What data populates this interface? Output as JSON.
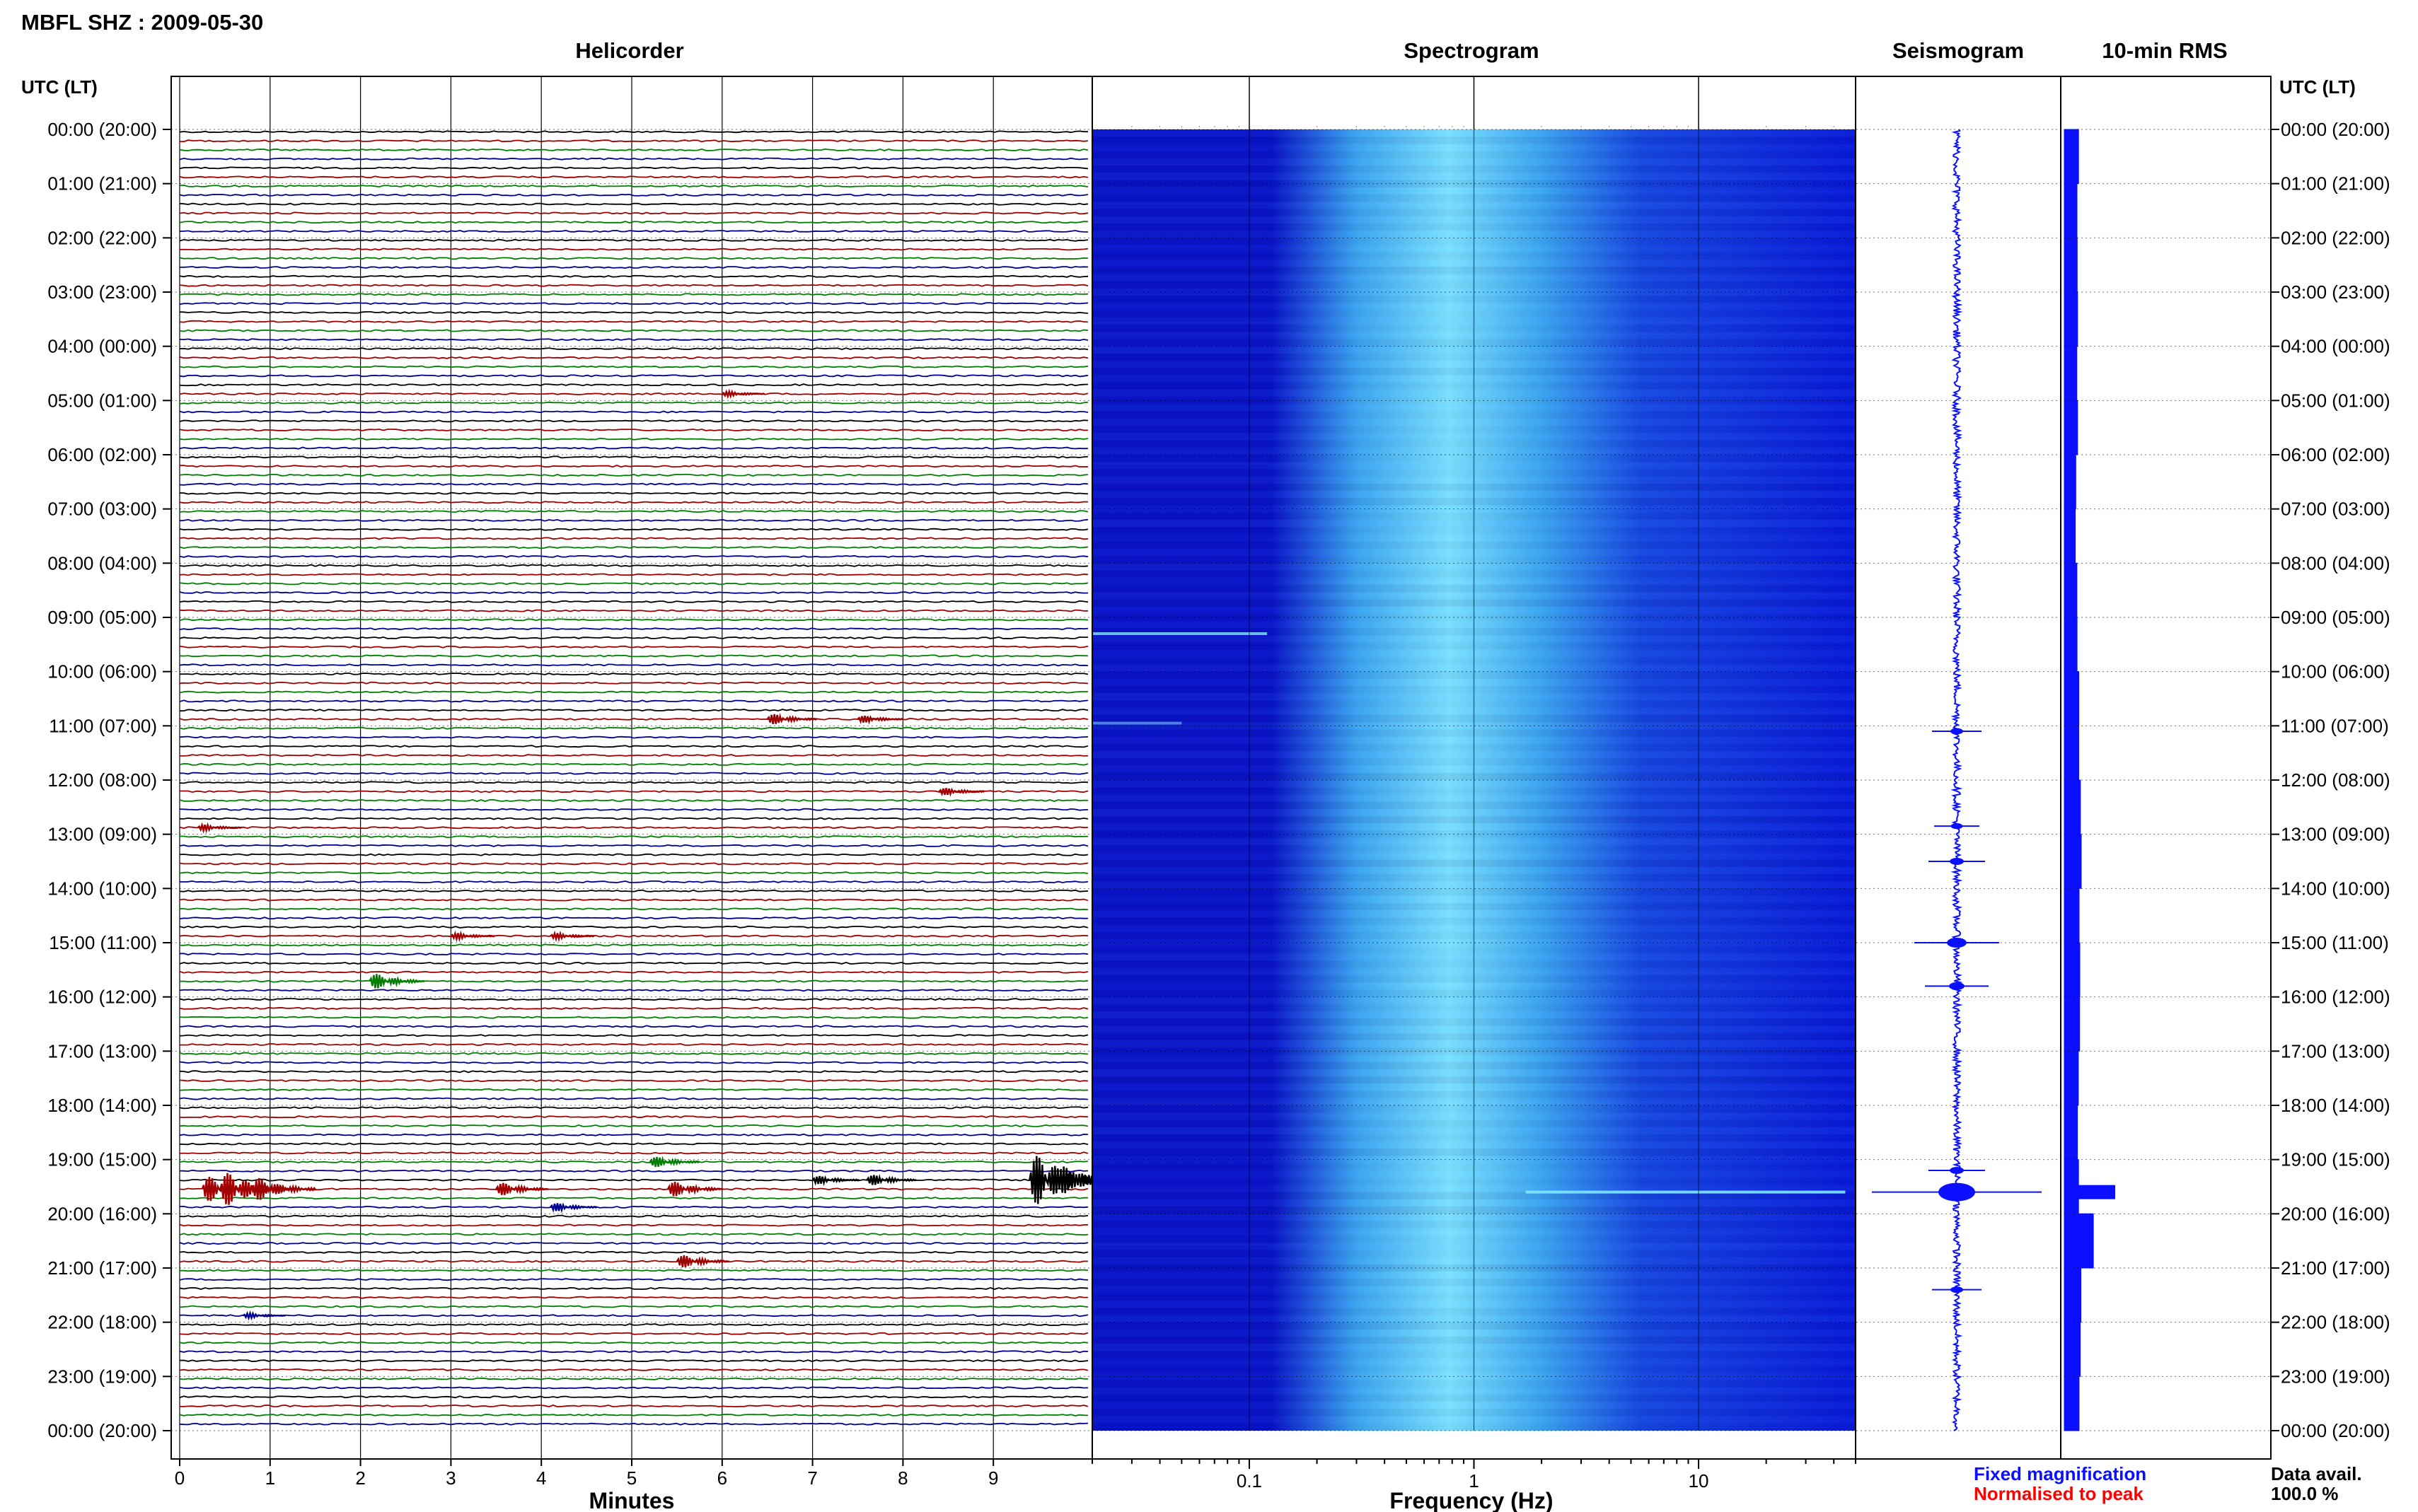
{
  "header": {
    "title": "MBFL SHZ : 2009-05-30"
  },
  "panels": {
    "helicorder": "Helicorder",
    "spectrogram": "Spectrogram",
    "seismogram": "Seismogram",
    "rms": "10-min RMS"
  },
  "axis": {
    "left_label": "UTC (LT)",
    "right_label": "UTC (LT)",
    "x_minutes_label": "Minutes",
    "x_frequency_label": "Frequency (Hz)"
  },
  "legend": {
    "fixed": "Fixed magnification",
    "normalised": "Normalised to peak",
    "fixed_color": "#0a10ff",
    "normalised_color": "#ff0000"
  },
  "availability": {
    "label": "Data avail.",
    "value": "100.0 %"
  },
  "colors": {
    "trace_black": "#000000",
    "trace_red": "#a00000",
    "trace_green": "#008000",
    "trace_blue": "#000090",
    "spectro_low": "#0a14c8",
    "spectro_high": "#7fe6ff",
    "rms_fill": "#0a10ff"
  },
  "chart_data": {
    "type": "heatmap",
    "time_ticks": [
      "00:00 (20:00)",
      "01:00 (21:00)",
      "02:00 (22:00)",
      "03:00 (23:00)",
      "04:00 (00:00)",
      "05:00 (01:00)",
      "06:00 (02:00)",
      "07:00 (03:00)",
      "08:00 (04:00)",
      "09:00 (05:00)",
      "10:00 (06:00)",
      "11:00 (07:00)",
      "12:00 (08:00)",
      "13:00 (09:00)",
      "14:00 (10:00)",
      "15:00 (11:00)",
      "16:00 (12:00)",
      "17:00 (13:00)",
      "18:00 (14:00)",
      "19:00 (15:00)",
      "20:00 (16:00)",
      "21:00 (17:00)",
      "22:00 (18:00)",
      "23:00 (19:00)",
      "00:00 (20:00)"
    ],
    "helicorder": {
      "minutes_ticks": [
        "0",
        "1",
        "2",
        "3",
        "4",
        "5",
        "6",
        "7",
        "8",
        "9"
      ],
      "xlim": [
        0,
        10
      ],
      "lines_per_hour": 6,
      "color_cycle": [
        "black",
        "red",
        "green",
        "blue"
      ],
      "events": [
        {
          "hour": 4.95,
          "minute": 6.0,
          "amp": 0.25
        },
        {
          "hour": 10.95,
          "minute": 6.5,
          "amp": 0.5
        },
        {
          "hour": 10.95,
          "minute": 7.5,
          "amp": 0.35
        },
        {
          "hour": 12.3,
          "minute": 8.4,
          "amp": 0.35
        },
        {
          "hour": 12.95,
          "minute": 0.2,
          "amp": 0.3
        },
        {
          "hour": 14.95,
          "minute": 3.0,
          "amp": 0.3
        },
        {
          "hour": 14.95,
          "minute": 4.1,
          "amp": 0.3
        },
        {
          "hour": 15.8,
          "minute": 2.1,
          "amp": 0.7
        },
        {
          "hour": 19.1,
          "minute": 5.2,
          "amp": 0.5
        },
        {
          "hour": 19.45,
          "minute": 9.4,
          "amp": 2.0
        },
        {
          "hour": 19.45,
          "minute": 9.7,
          "amp": 1.2
        },
        {
          "hour": 19.45,
          "minute": 7.0,
          "amp": 0.4
        },
        {
          "hour": 19.45,
          "minute": 7.6,
          "amp": 0.5
        },
        {
          "hour": 19.62,
          "minute": 0.25,
          "amp": 1.1
        },
        {
          "hour": 19.62,
          "minute": 0.45,
          "amp": 1.4
        },
        {
          "hour": 19.62,
          "minute": 0.8,
          "amp": 1.0
        },
        {
          "hour": 19.62,
          "minute": 3.5,
          "amp": 0.6
        },
        {
          "hour": 19.62,
          "minute": 5.4,
          "amp": 0.7
        },
        {
          "hour": 19.95,
          "minute": 4.1,
          "amp": 0.4
        },
        {
          "hour": 20.95,
          "minute": 5.5,
          "amp": 0.6
        },
        {
          "hour": 21.95,
          "minute": 0.7,
          "amp": 0.25
        }
      ]
    },
    "spectrogram": {
      "x_scale": "log",
      "xlim": [
        0.02,
        50
      ],
      "x_ticks": [
        "0.1",
        "1",
        "10"
      ],
      "peak_band_hz": [
        0.3,
        2.0
      ],
      "lines": [
        {
          "hour": 9.3,
          "f_from": 0.02,
          "f_to": 0.12,
          "strength": 0.8
        },
        {
          "hour": 10.95,
          "f_from": 0.02,
          "f_to": 0.05,
          "strength": 0.5
        },
        {
          "hour": 19.6,
          "f_from": 1.7,
          "f_to": 45,
          "strength": 0.9
        }
      ]
    },
    "seismogram": {
      "events": [
        {
          "hour": 11.1,
          "amp": 0.15
        },
        {
          "hour": 12.85,
          "amp": 0.12
        },
        {
          "hour": 13.5,
          "amp": 0.2
        },
        {
          "hour": 15.0,
          "amp": 0.4
        },
        {
          "hour": 15.8,
          "amp": 0.25
        },
        {
          "hour": 19.2,
          "amp": 0.2
        },
        {
          "hour": 19.6,
          "amp": 1.0
        },
        {
          "hour": 21.4,
          "amp": 0.15
        }
      ]
    },
    "rms": {
      "hourly_values": [
        0.5,
        0.45,
        0.4,
        0.4,
        0.38,
        0.42,
        0.38,
        0.36,
        0.38,
        0.5,
        0.55,
        0.5,
        0.6,
        0.7,
        0.6,
        0.65,
        0.55,
        0.5,
        0.5,
        0.55,
        1.6,
        0.75,
        0.6,
        0.55
      ],
      "peak": {
        "hour": 19.6,
        "value": 1.6
      }
    }
  }
}
